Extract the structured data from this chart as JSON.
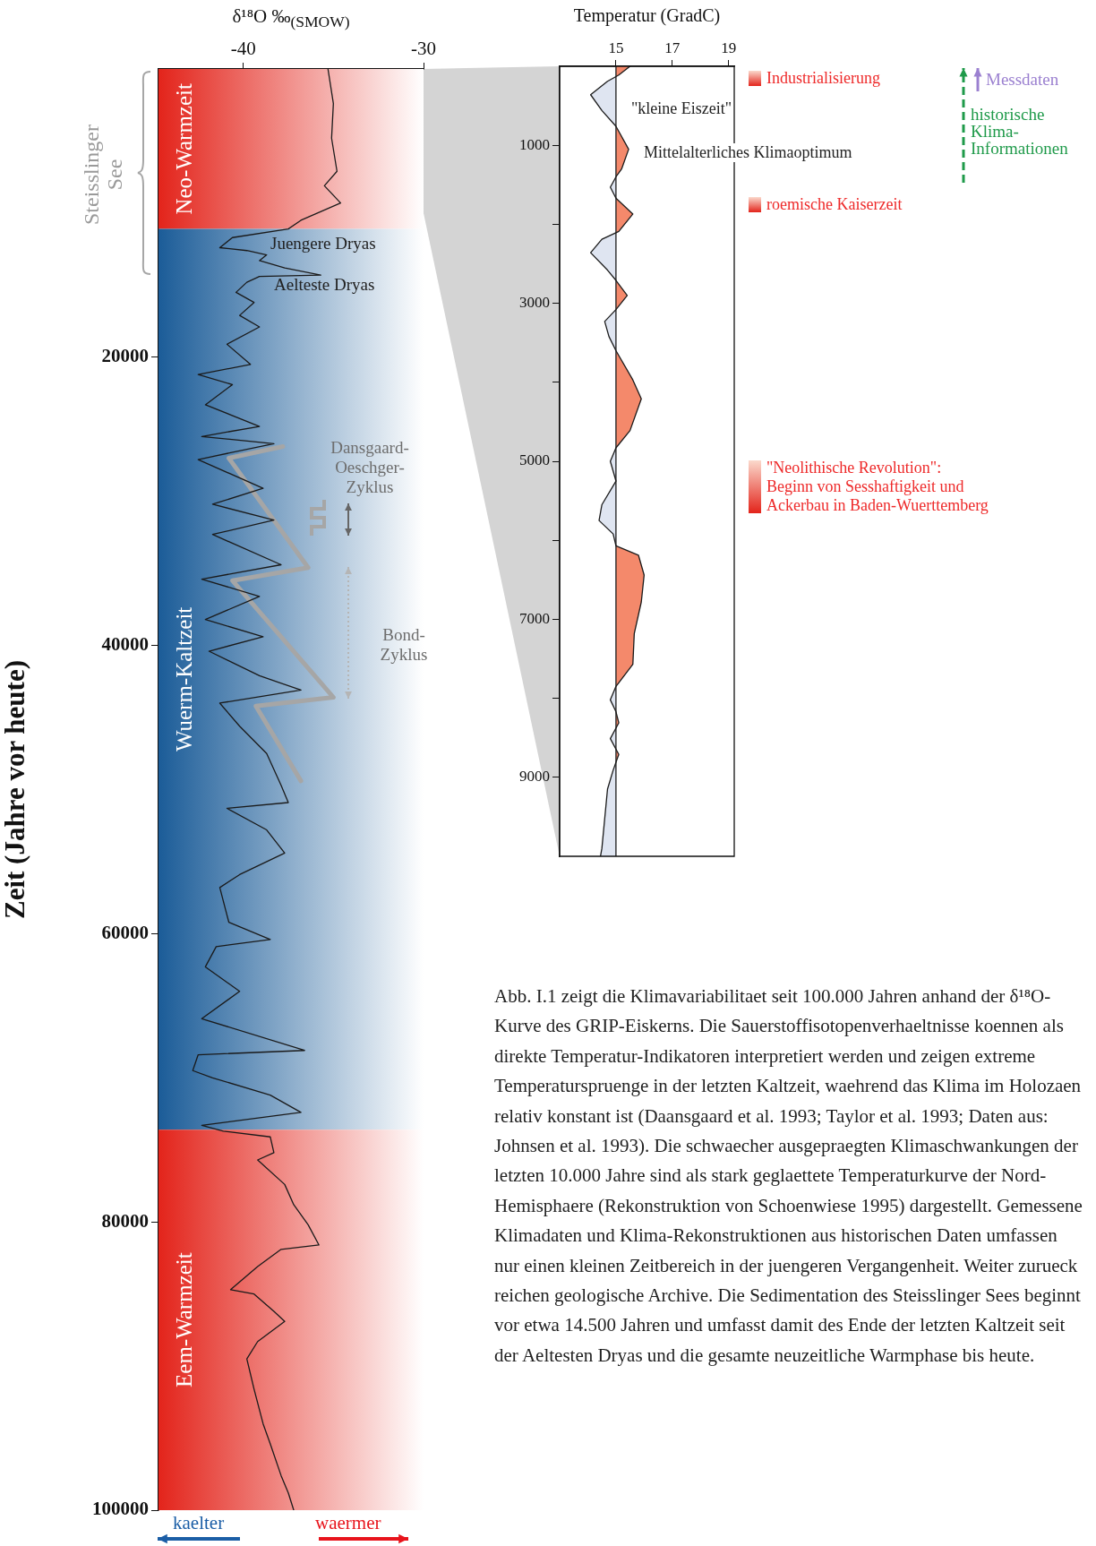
{
  "chart_data": [
    {
      "type": "line",
      "xlabel": "δ¹⁸O ‰$_{(SMOW)}$",
      "ylabel": "Zeit (Jahre vor heute)",
      "xlim": [
        -44.7,
        -30
      ],
      "xticks": [
        -40,
        -30
      ],
      "ylim": [
        100000,
        0
      ],
      "yticks": [
        20000,
        40000,
        60000,
        80000,
        100000
      ],
      "grid": false,
      "legend": false,
      "series": [
        {
          "color": "#1a1a1a",
          "x": [
            -35.3,
            -35.0,
            -35.1,
            -34.8,
            -35.5,
            -34.6,
            -36.8,
            -37.5,
            -40.6,
            -41.3,
            -39.8,
            -38.7,
            -39.1,
            -37.7,
            -35.7,
            -39.1,
            -39.8,
            -40.4,
            -39.4,
            -40.2,
            -39.1,
            -40.9,
            -39.6,
            -42.5,
            -40.6,
            -42.1,
            -39.1,
            -42.3,
            -38.3,
            -42.5,
            -38.9,
            -41.7,
            -38.3,
            -41.7,
            -37.9,
            -42.3,
            -39.1,
            -42.1,
            -38.9,
            -41.9,
            -39.1,
            -36.8,
            -41.3,
            -40.2,
            -38.7,
            -37.9,
            -37.5,
            -40.9,
            -38.7,
            -37.7,
            -40.2,
            -41.3,
            -40.8,
            -38.5,
            -41.5,
            -42.1,
            -40.2,
            -42.3,
            -36.6,
            -42.5,
            -42.8,
            -41.7,
            -38.5,
            -36.8,
            -42.3,
            -41.1,
            -38.5,
            -38.3,
            -39.2,
            -37.7,
            -37.2,
            -36.4,
            -35.8,
            -37.9,
            -39.2,
            -40.7,
            -39.4,
            -38.3,
            -37.7,
            -39.2,
            -39.8,
            -39.4,
            -38.9,
            -38.5,
            -37.9,
            -37.5,
            -37.2
          ],
          "values": [
            0,
            2400,
            4800,
            7100,
            8100,
            9300,
            10500,
            11100,
            11700,
            12400,
            12600,
            12900,
            13300,
            13800,
            14300,
            14400,
            14800,
            15500,
            16200,
            17100,
            17900,
            19100,
            20500,
            21200,
            21900,
            23300,
            24800,
            25500,
            26000,
            27100,
            29100,
            30200,
            31300,
            32300,
            34400,
            35400,
            36600,
            38200,
            39400,
            40400,
            42100,
            43100,
            44000,
            45600,
            47500,
            49700,
            50900,
            51300,
            52800,
            54400,
            55900,
            56800,
            59200,
            60400,
            60900,
            62300,
            64000,
            65900,
            68100,
            68400,
            69500,
            70000,
            71200,
            72400,
            73300,
            73700,
            74100,
            75200,
            75700,
            77400,
            78800,
            80200,
            81600,
            81900,
            83100,
            84700,
            85000,
            86200,
            86900,
            88300,
            89500,
            91600,
            94000,
            95400,
            97600,
            98800,
            100000
          ]
        },
        {
          "color": "#a6a6a6",
          "x": [
            -37.8,
            -40.8,
            -36.4,
            -40.6,
            -35.0,
            -39.3,
            -36.8
          ],
          "values": [
            26200,
            27000,
            34600,
            35500,
            43600,
            44200,
            49400
          ]
        }
      ],
      "bands": [
        {
          "axis": "y",
          "from": 0,
          "to": 11100,
          "label": "Neo-Warmzeit",
          "color": "#e3241b"
        },
        {
          "axis": "y",
          "from": 11100,
          "to": 73600,
          "label": "Wuerm-Kaltzeit",
          "color": "#1b5c98"
        },
        {
          "axis": "y",
          "from": 73600,
          "to": 100000,
          "label": "Eem-Warmzeit",
          "color": "#e3241b"
        }
      ],
      "annotations": [
        "Steisslinger See",
        "Juengere Dryas",
        "Aelteste Dryas",
        "Dansgaard-Oeschger-Zyklus",
        "Bond-Zyklus",
        "kaelter",
        "waermer"
      ]
    },
    {
      "type": "area",
      "xlabel": "Temperatur (GradC)",
      "xlim": [
        13,
        19.2
      ],
      "xticks": [
        15,
        17,
        19
      ],
      "ylim": [
        10000,
        0
      ],
      "yticks": [
        1000,
        {
          "value": 2000,
          "label": null
        },
        3000,
        {
          "value": 4000,
          "label": null
        },
        5000,
        {
          "value": 6000,
          "label": null
        },
        7000,
        {
          "value": 8000,
          "label": null
        },
        9000
      ],
      "grid": false,
      "legend": false,
      "ref_lines": [
        {
          "axis": "x",
          "value": 15,
          "color": "#1a1a1a"
        }
      ],
      "series": [
        {
          "color": "#f4896b",
          "x": [
            15.5,
            15.1,
            14.7,
            14.1,
            14.5,
            15.0,
            15.45,
            15.2,
            15.0,
            14.8,
            15.0,
            15.6,
            15.1,
            14.5,
            14.1,
            14.7,
            15.0,
            15.4,
            15.0,
            14.6,
            14.75,
            15.0,
            15.6,
            15.9,
            15.5,
            15.0,
            14.8,
            15.0,
            14.5,
            14.4,
            14.9,
            15.0,
            15.8,
            16.0,
            15.9,
            15.65,
            15.6,
            15.0,
            14.8,
            15.0,
            15.1,
            14.8,
            15.1,
            14.9,
            14.7,
            14.5,
            14.45
          ],
          "values": [
            0,
            110,
            190,
            360,
            560,
            760,
            1050,
            1300,
            1400,
            1530,
            1670,
            1870,
            2090,
            2190,
            2360,
            2580,
            2710,
            2900,
            3080,
            3230,
            3420,
            3600,
            3970,
            4210,
            4610,
            4830,
            5000,
            5250,
            5550,
            5750,
            5920,
            6070,
            6190,
            6440,
            6780,
            7180,
            7570,
            7850,
            8020,
            8170,
            8310,
            8510,
            8710,
            8910,
            9150,
            9900,
            10000
          ]
        }
      ],
      "annotations": [
        "Industrialisierung",
        "\"kleine Eiszeit\"",
        "Mittelalterliches Klimaoptimum",
        "roemische Kaiserzeit",
        "\"Neolithische Revolution\": Beginn von Sesshaftigkeit und Ackerbau in Baden-Wuerttemberg",
        "Messdaten",
        "historische Klima-Informationen",
        "Abb. I.1 zeigt die Klimavariabilitaet seit 100.000 Jahren anhand der δ¹⁸O-Kurve des GRIP-Eiskerns. Die Sauerstoffisotopenverhaeltnisse koennen als direkte Temperatur-Indikatoren interpretiert werden und zeigen extreme Temperaturspruenge in der letzten Kaltzeit, waehrend das Klima im Holozaen relativ konstant ist (Daansgaard et al. 1993; Taylor et al. 1993; Daten aus: Johnsen et al. 1993). Die schwaecher ausgepraegten Klimaschwankungen der letzten 10.000 Jahre sind als stark geglaettete Temperaturkurve der Nord-Hemisphaere (Rekonstruktion von Schoenwiese 1995) dargestellt. Gemessene Klimadaten und Klima-Rekonstruktionen aus historischen Daten umfassen nur einen kleinen Zeitbereich in der juengeren Vergangenheit. Weiter zurueck reichen geologische Archive. Die Sedimentation des Steisslinger Sees beginnt vor etwa 14.500 Jahren und umfasst damit des Ende der letzten Kaltzeit seit der Aeltesten Dryas und die gesamte neuzeitliche Warmphase bis heute."
      ]
    }
  ]
}
